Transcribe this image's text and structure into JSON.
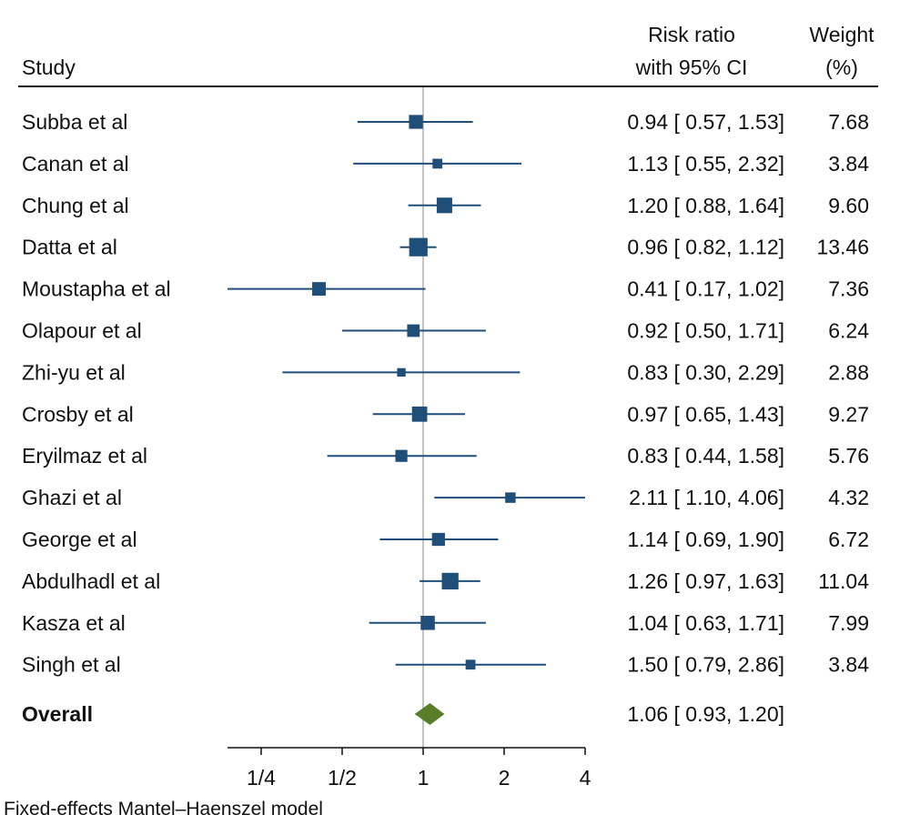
{
  "chart_data": {
    "type": "forest",
    "x_scale": "log2",
    "xlim": [
      0.1875,
      4
    ],
    "x_ticks": [
      0.25,
      0.5,
      1,
      2,
      4
    ],
    "x_tick_labels": [
      "1/4",
      "1/2",
      "1",
      "2",
      "4"
    ],
    "reference_line": 1,
    "headers": {
      "study": "Study",
      "rr_line1": "Risk ratio",
      "rr_line2": "with 95% CI",
      "weight_line1": "Weight",
      "weight_line2": "(%)"
    },
    "studies": [
      {
        "name": "Subba et al",
        "rr": 0.94,
        "lo": 0.57,
        "hi": 1.53,
        "ci_text": "0.94 [ 0.57,  1.53]",
        "weight": 7.68,
        "weight_text": "7.68"
      },
      {
        "name": "Canan et al",
        "rr": 1.13,
        "lo": 0.55,
        "hi": 2.32,
        "ci_text": "1.13 [ 0.55,  2.32]",
        "weight": 3.84,
        "weight_text": "3.84"
      },
      {
        "name": "Chung et al",
        "rr": 1.2,
        "lo": 0.88,
        "hi": 1.64,
        "ci_text": "1.20 [ 0.88,  1.64]",
        "weight": 9.6,
        "weight_text": "9.60"
      },
      {
        "name": "Datta et al",
        "rr": 0.96,
        "lo": 0.82,
        "hi": 1.12,
        "ci_text": "0.96 [ 0.82,  1.12]",
        "weight": 13.46,
        "weight_text": "13.46"
      },
      {
        "name": "Moustapha et al",
        "rr": 0.41,
        "lo": 0.17,
        "hi": 1.02,
        "ci_text": "0.41 [ 0.17,  1.02]",
        "weight": 7.36,
        "weight_text": "7.36"
      },
      {
        "name": "Olapour et al",
        "rr": 0.92,
        "lo": 0.5,
        "hi": 1.71,
        "ci_text": "0.92 [ 0.50,  1.71]",
        "weight": 6.24,
        "weight_text": "6.24"
      },
      {
        "name": "Zhi-yu et al",
        "rr": 0.83,
        "lo": 0.3,
        "hi": 2.29,
        "ci_text": "0.83 [ 0.30,  2.29]",
        "weight": 2.88,
        "weight_text": "2.88"
      },
      {
        "name": "Crosby et al",
        "rr": 0.97,
        "lo": 0.65,
        "hi": 1.43,
        "ci_text": "0.97 [ 0.65,  1.43]",
        "weight": 9.27,
        "weight_text": "9.27"
      },
      {
        "name": "Eryilmaz et al",
        "rr": 0.83,
        "lo": 0.44,
        "hi": 1.58,
        "ci_text": "0.83 [ 0.44,  1.58]",
        "weight": 5.76,
        "weight_text": "5.76"
      },
      {
        "name": "Ghazi et al",
        "rr": 2.11,
        "lo": 1.1,
        "hi": 4.06,
        "ci_text": "2.11 [ 1.10,  4.06]",
        "weight": 4.32,
        "weight_text": "4.32"
      },
      {
        "name": "George et al",
        "rr": 1.14,
        "lo": 0.69,
        "hi": 1.9,
        "ci_text": "1.14 [ 0.69,  1.90]",
        "weight": 6.72,
        "weight_text": "6.72"
      },
      {
        "name": "Abdulhadl et al",
        "rr": 1.26,
        "lo": 0.97,
        "hi": 1.63,
        "ci_text": "1.26 [ 0.97,  1.63]",
        "weight": 11.04,
        "weight_text": "11.04"
      },
      {
        "name": "Kasza et al",
        "rr": 1.04,
        "lo": 0.63,
        "hi": 1.71,
        "ci_text": "1.04 [ 0.63,  1.71]",
        "weight": 7.99,
        "weight_text": "7.99"
      },
      {
        "name": "Singh  et al",
        "rr": 1.5,
        "lo": 0.79,
        "hi": 2.86,
        "ci_text": "1.50 [ 0.79,  2.86]",
        "weight": 3.84,
        "weight_text": "3.84"
      }
    ],
    "overall": {
      "name": "Overall",
      "rr": 1.06,
      "lo": 0.93,
      "hi": 1.2,
      "ci_text": "1.06 [ 0.93,  1.20]"
    },
    "colors": {
      "marker": "#1f4e79",
      "overall": "#5a7d2a",
      "reference_line": "#b0b0b0",
      "axis": "#111111"
    },
    "footnote": "Fixed-effects Mantel–Haenszel model"
  }
}
